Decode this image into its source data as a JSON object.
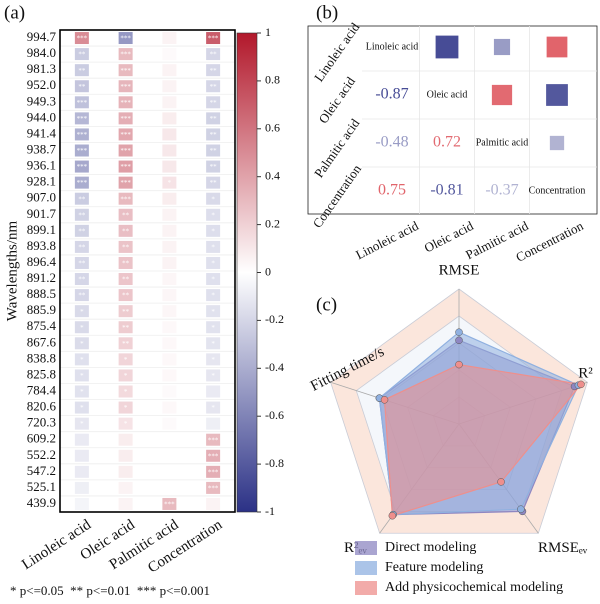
{
  "chart_data": [
    {
      "type": "heatmap",
      "label": "(a)",
      "ylabel": "Wavelengths/nm",
      "x_categories": [
        "Linoleic acid",
        "Oleic acid",
        "Palmitic acid",
        "Concentration"
      ],
      "y_categories": [
        "994.7",
        "984.0",
        "981.3",
        "952.0",
        "949.3",
        "944.0",
        "941.4",
        "938.7",
        "936.1",
        "928.1",
        "907.0",
        "901.7",
        "899.1",
        "893.8",
        "896.4",
        "891.2",
        "888.5",
        "885.9",
        "875.4",
        "867.6",
        "838.8",
        "825.8",
        "784.4",
        "820.6",
        "720.3",
        "609.2",
        "552.2",
        "547.2",
        "525.1",
        "439.9"
      ],
      "values": [
        [
          0.5,
          -0.5,
          0.05,
          0.7
        ],
        [
          -0.25,
          0.3,
          0.02,
          -0.2
        ],
        [
          -0.25,
          0.3,
          0.05,
          -0.2
        ],
        [
          -0.28,
          0.32,
          0.05,
          -0.2
        ],
        [
          -0.3,
          0.33,
          0.05,
          -0.2
        ],
        [
          -0.35,
          0.35,
          0.08,
          -0.22
        ],
        [
          -0.38,
          0.38,
          0.1,
          -0.22
        ],
        [
          -0.4,
          0.4,
          0.1,
          -0.22
        ],
        [
          -0.42,
          0.42,
          0.1,
          -0.22
        ],
        [
          -0.4,
          0.4,
          0.12,
          -0.2
        ],
        [
          -0.25,
          0.3,
          0.08,
          -0.18
        ],
        [
          -0.22,
          0.28,
          0.05,
          -0.16
        ],
        [
          -0.22,
          0.28,
          0.05,
          -0.16
        ],
        [
          -0.2,
          0.26,
          0.05,
          -0.15
        ],
        [
          -0.2,
          0.26,
          0.05,
          -0.15
        ],
        [
          -0.2,
          0.25,
          0.04,
          -0.15
        ],
        [
          -0.2,
          0.25,
          0.04,
          -0.15
        ],
        [
          -0.18,
          0.22,
          0.04,
          -0.14
        ],
        [
          -0.18,
          0.22,
          0.03,
          -0.14
        ],
        [
          -0.17,
          0.2,
          0.03,
          -0.13
        ],
        [
          -0.15,
          0.18,
          0.03,
          -0.12
        ],
        [
          -0.15,
          0.18,
          0.03,
          -0.12
        ],
        [
          -0.14,
          0.16,
          0.02,
          -0.1
        ],
        [
          -0.15,
          0.18,
          0.03,
          -0.12
        ],
        [
          -0.12,
          0.12,
          0.02,
          -0.08
        ],
        [
          -0.1,
          0.08,
          0.0,
          0.3
        ],
        [
          -0.1,
          0.08,
          0.0,
          0.35
        ],
        [
          -0.1,
          0.08,
          0.0,
          0.35
        ],
        [
          -0.08,
          0.05,
          0.0,
          0.3
        ],
        [
          -0.05,
          0.05,
          0.3,
          0.05
        ]
      ],
      "stars": [
        [
          "***",
          "***",
          null,
          "***"
        ],
        [
          "**",
          "***",
          null,
          "**"
        ],
        [
          "**",
          "***",
          null,
          "**"
        ],
        [
          "**",
          "***",
          null,
          "**"
        ],
        [
          "***",
          "***",
          null,
          "**"
        ],
        [
          "***",
          "***",
          null,
          "**"
        ],
        [
          "***",
          "***",
          null,
          "**"
        ],
        [
          "***",
          "***",
          null,
          "**"
        ],
        [
          "***",
          "***",
          null,
          "**"
        ],
        [
          "***",
          "***",
          "*",
          "**"
        ],
        [
          "**",
          "***",
          null,
          "*"
        ],
        [
          "**",
          "**",
          null,
          "*"
        ],
        [
          "**",
          "**",
          null,
          "*"
        ],
        [
          "**",
          "**",
          null,
          "*"
        ],
        [
          "**",
          "**",
          null,
          "*"
        ],
        [
          "**",
          "**",
          null,
          "*"
        ],
        [
          "**",
          "**",
          null,
          "*"
        ],
        [
          "*",
          "**",
          null,
          "*"
        ],
        [
          "*",
          "**",
          null,
          "*"
        ],
        [
          "*",
          "**",
          null,
          "*"
        ],
        [
          "*",
          "*",
          null,
          "*"
        ],
        [
          "*",
          "*",
          null,
          "*"
        ],
        [
          "*",
          "*",
          null,
          null
        ],
        [
          "*",
          "*",
          null,
          "*"
        ],
        [
          "*",
          "*",
          null,
          null
        ],
        [
          null,
          null,
          null,
          "***"
        ],
        [
          null,
          null,
          null,
          "***"
        ],
        [
          null,
          null,
          null,
          "***"
        ],
        [
          null,
          null,
          null,
          "***"
        ],
        [
          null,
          null,
          "***",
          null
        ]
      ],
      "colormap": [
        "#2b3186",
        "#ffffff",
        "#b2182b"
      ],
      "clim": [
        -1,
        1
      ],
      "cticks": [
        1,
        0.8,
        0.6,
        0.4,
        0.2,
        0,
        -0.2,
        -0.4,
        -0.6,
        -0.8,
        -1
      ],
      "note": "* p<=0.05  ** p<=0.01  *** p<=0.001"
    },
    {
      "type": "correlation-matrix",
      "label": "(b)",
      "categories": [
        "Linoleic acid",
        "Oleic acid",
        "Palmitic acid",
        "Concentration"
      ],
      "values": [
        [
          null,
          null,
          null,
          null
        ],
        [
          -0.87,
          null,
          null,
          null
        ],
        [
          -0.48,
          0.72,
          null,
          null
        ],
        [
          0.75,
          -0.81,
          -0.37,
          null
        ]
      ],
      "colormap": [
        "#2b3186",
        "#ffffff",
        "#d7303a"
      ],
      "clim": [
        -1,
        1
      ]
    },
    {
      "type": "radar",
      "label": "(c)",
      "axes": [
        "RMSE",
        "R²",
        "RMSEₑᵥ",
        "R²ₑᵥ",
        "Fitting time/s"
      ],
      "rlim": [
        0,
        1
      ],
      "rticks": [
        0.2,
        0.4,
        0.6,
        0.8,
        1
      ],
      "series": [
        {
          "name": "Direct modeling",
          "color": "#8e87c2",
          "values": [
            0.62,
            0.9,
            0.8,
            0.83,
            0.62
          ]
        },
        {
          "name": "Feature modeling",
          "color": "#8fb0e0",
          "values": [
            0.68,
            0.93,
            0.78,
            0.83,
            0.62
          ]
        },
        {
          "name": "Add physicochemical modeling",
          "color": "#ee8f8c",
          "values": [
            0.44,
            0.95,
            0.53,
            0.84,
            0.58
          ]
        }
      ]
    }
  ]
}
